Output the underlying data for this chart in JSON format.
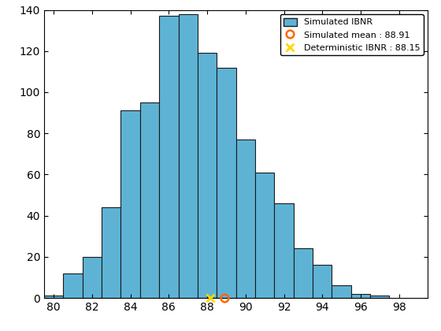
{
  "title": "",
  "simulated_mean": 88.91,
  "deterministic_ibnr": 88.15,
  "bar_heights": [
    1,
    12,
    20,
    44,
    91,
    95,
    137,
    138,
    119,
    112,
    77,
    61,
    46,
    24,
    16,
    6,
    2,
    1
  ],
  "bar_centers": [
    80,
    81,
    82,
    83,
    84,
    85,
    86,
    87,
    88,
    89,
    90,
    91,
    92,
    93,
    94,
    95,
    96,
    97
  ],
  "bar_width": 1.0,
  "bar_color": "#5EB3D5",
  "bar_edgecolor": "#1a1a1a",
  "xlim": [
    79.5,
    99.5
  ],
  "ylim": [
    0,
    140
  ],
  "xticks": [
    80,
    82,
    84,
    86,
    88,
    90,
    92,
    94,
    96,
    98
  ],
  "yticks": [
    0,
    20,
    40,
    60,
    80,
    100,
    120,
    140
  ],
  "legend_labels": [
    "Simulated IBNR",
    "Simulated mean : 88.91",
    "Deterministic IBNR : 88.15"
  ],
  "mean_marker_color": "#FF6600",
  "det_marker_color": "#FFD700",
  "mean_marker": "o",
  "det_marker": "x",
  "figsize": [
    5.6,
    4.2
  ],
  "dpi": 100
}
